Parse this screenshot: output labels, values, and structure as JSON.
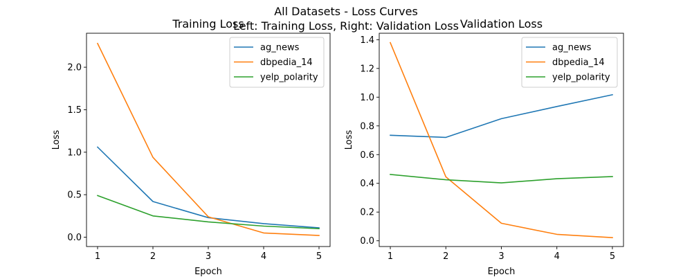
{
  "figure": {
    "suptitle_line1": "All Datasets - Loss Curves",
    "suptitle_line2": "Left: Training Loss, Right: Validation Loss"
  },
  "chart_data": [
    {
      "type": "line",
      "title": "Training Loss",
      "xlabel": "Epoch",
      "ylabel": "Loss",
      "x": [
        1,
        2,
        3,
        4,
        5
      ],
      "xticks": [
        "1",
        "2",
        "3",
        "4",
        "5"
      ],
      "yticks": [
        "0.0",
        "0.5",
        "1.0",
        "1.5",
        "2.0"
      ],
      "xlim": [
        0.8,
        5.2
      ],
      "ylim": [
        -0.11,
        2.4
      ],
      "grid": false,
      "legend_position": "upper right",
      "series": [
        {
          "name": "ag_news",
          "color": "#1f77b4",
          "values": [
            1.06,
            0.42,
            0.23,
            0.16,
            0.11
          ]
        },
        {
          "name": "dbpedia_14",
          "color": "#ff7f0e",
          "values": [
            2.28,
            0.94,
            0.24,
            0.05,
            0.02
          ]
        },
        {
          "name": "yelp_polarity",
          "color": "#2ca02c",
          "values": [
            0.49,
            0.25,
            0.18,
            0.13,
            0.1
          ]
        }
      ]
    },
    {
      "type": "line",
      "title": "Validation Loss",
      "xlabel": "Epoch",
      "ylabel": "Loss",
      "x": [
        1,
        2,
        3,
        4,
        5
      ],
      "xticks": [
        "1",
        "2",
        "3",
        "4",
        "5"
      ],
      "yticks": [
        "0.0",
        "0.2",
        "0.4",
        "0.6",
        "0.8",
        "1.0",
        "1.2",
        "1.4"
      ],
      "xlim": [
        0.8,
        5.2
      ],
      "ylim": [
        -0.04,
        1.445
      ],
      "grid": false,
      "legend_position": "upper right",
      "series": [
        {
          "name": "ag_news",
          "color": "#1f77b4",
          "values": [
            0.735,
            0.72,
            0.85,
            0.935,
            1.017
          ]
        },
        {
          "name": "dbpedia_14",
          "color": "#ff7f0e",
          "values": [
            1.38,
            0.445,
            0.122,
            0.045,
            0.022
          ]
        },
        {
          "name": "yelp_polarity",
          "color": "#2ca02c",
          "values": [
            0.462,
            0.425,
            0.403,
            0.432,
            0.447
          ]
        }
      ]
    }
  ]
}
